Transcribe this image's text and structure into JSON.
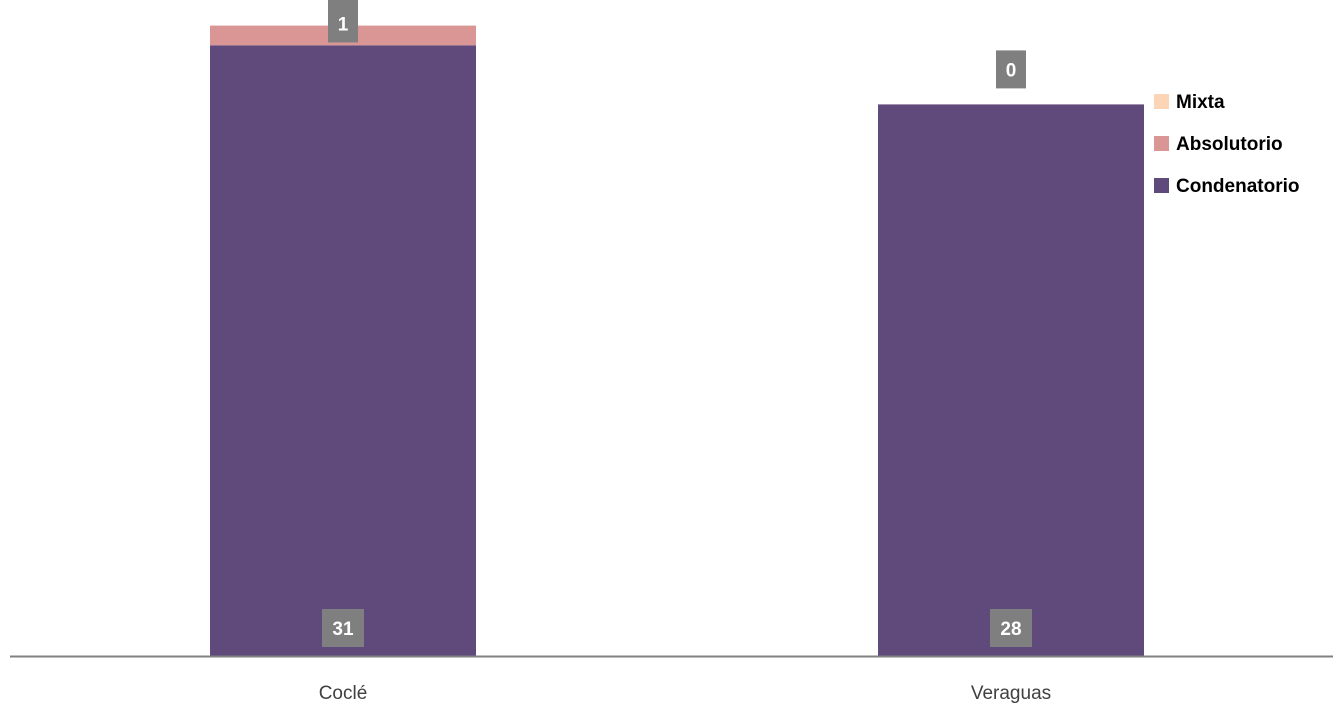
{
  "chart_data": {
    "type": "bar",
    "stacked": true,
    "title": "",
    "xlabel": "",
    "ylabel": "",
    "ylim": [
      0,
      32
    ],
    "grid": false,
    "legend_position": "right",
    "categories": [
      "Coclé",
      "Veraguas"
    ],
    "series": [
      {
        "name": "Condenatorio",
        "color": "#604a7b",
        "values": [
          31,
          28
        ]
      },
      {
        "name": "Absolutorio",
        "color": "#d99694",
        "values": [
          1,
          0
        ]
      },
      {
        "name": "Mixta",
        "color": "#fbd5b5",
        "values": [
          0,
          0
        ]
      }
    ],
    "data_labels": [
      {
        "category": "Coclé",
        "series": "Condenatorio",
        "text": "31"
      },
      {
        "category": "Coclé",
        "series": "Absolutorio",
        "text": "1"
      },
      {
        "category": "Coclé",
        "series": "Mixta",
        "text": "0"
      },
      {
        "category": "Veraguas",
        "series": "Condenatorio",
        "text": "28"
      },
      {
        "category": "Veraguas",
        "series": "Mixta",
        "text": "0"
      }
    ],
    "legend": [
      "Mixta",
      "Absolutorio",
      "Condenatorio"
    ],
    "label_box_color": "#7f7f7f",
    "axis_color": "#808080"
  }
}
